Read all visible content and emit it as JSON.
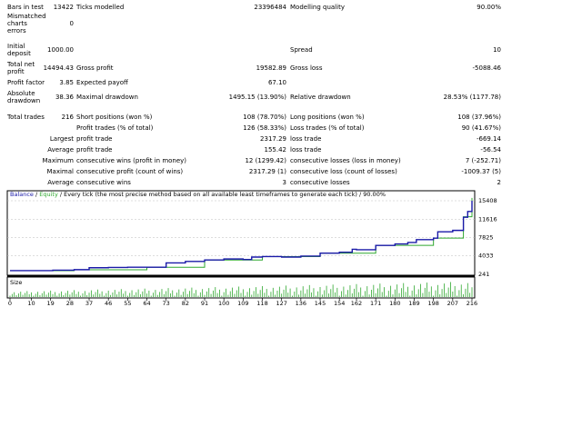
{
  "report": {
    "bars_in_test": {
      "label": "Bars in test",
      "value": "13422"
    },
    "ticks_modelled": {
      "label": "Ticks modelled",
      "value": "23396484"
    },
    "modelling_quality": {
      "label": "Modelling quality",
      "value": "90.00%"
    },
    "mismatched": {
      "label_l1": "Mismatched",
      "label_l2": "charts",
      "label_l3": "errors",
      "value": "0"
    },
    "initial_deposit": {
      "label_l1": "Initial",
      "label_l2": "deposit",
      "value": "1000.00"
    },
    "spread": {
      "label": "Spread",
      "value": "10"
    },
    "total_net_profit": {
      "label_l1": "Total net",
      "label_l2": "profit",
      "value": "14494.43"
    },
    "gross_profit": {
      "label": "Gross profit",
      "value": "19582.89"
    },
    "gross_loss": {
      "label": "Gross loss",
      "value": "-5088.46"
    },
    "profit_factor": {
      "label": "Profit factor",
      "value": "3.85"
    },
    "expected_payoff": {
      "label": "Expected payoff",
      "value": "67.10"
    },
    "absolute_drawdown": {
      "label_l1": "Absolute",
      "label_l2": "drawdown",
      "value": "38.36"
    },
    "maximal_drawdown": {
      "label": "Maximal drawdown",
      "value": "1495.15 (13.90%)"
    },
    "relative_drawdown": {
      "label": "Relative drawdown",
      "value": "28.53% (1177.78)"
    },
    "total_trades": {
      "label": "Total trades",
      "value": "216"
    },
    "short_positions": {
      "label": "Short positions (won %)",
      "value": "108 (78.70%)"
    },
    "long_positions": {
      "label": "Long positions (won %)",
      "value": "108 (37.96%)"
    },
    "profit_trades": {
      "label": "Profit trades (% of total)",
      "value": "126 (58.33%)"
    },
    "loss_trades": {
      "label": "Loss trades (% of total)",
      "value": "90 (41.67%)"
    },
    "largest": {
      "label": "Largest",
      "profit_label": "profit trade",
      "profit_value": "2317.29",
      "loss_label": "loss trade",
      "loss_value": "-669.14"
    },
    "average": {
      "label": "Average",
      "profit_label": "profit trade",
      "profit_value": "155.42",
      "loss_label": "loss trade",
      "loss_value": "-56.54"
    },
    "maximum": {
      "label": "Maximum",
      "wins_label": "consecutive wins (profit in money)",
      "wins_value": "12 (1299.42)",
      "losses_label": "consecutive losses (loss in money)",
      "losses_value": "7 (-252.71)"
    },
    "maximal": {
      "label": "Maximal",
      "wins_label": "consecutive profit (count of wins)",
      "wins_value": "2317.29 (1)",
      "losses_label": "consecutive loss (count of losses)",
      "losses_value": "-1009.37 (5)"
    },
    "average_consec": {
      "label": "Average",
      "wins_label": "consecutive wins",
      "wins_value": "3",
      "losses_label": "consecutive losses",
      "losses_value": "2"
    }
  },
  "colors": {
    "balance": "#1a1aa8",
    "equity": "#2fa82f",
    "volume": "#2fa82f",
    "grid": "#bcbcbc",
    "frame": "#000000",
    "title_text": "#1a1aa8"
  },
  "chart_data": {
    "type": "line",
    "legend": {
      "balance": "Balance",
      "sep1": " / ",
      "equity": "Equity",
      "sep2": " / ",
      "model_text": "Every tick (the most precise method based on all available least timeframes to generate each tick)",
      "sep3": " / ",
      "quality": "90.00%"
    },
    "x_ticks": [
      0,
      10,
      19,
      28,
      37,
      46,
      55,
      64,
      73,
      82,
      91,
      100,
      109,
      118,
      127,
      136,
      145,
      154,
      162,
      171,
      180,
      189,
      198,
      207,
      216
    ],
    "y_ticks": [
      241,
      4033,
      7825,
      11616,
      15408
    ],
    "ylim": [
      241,
      15408
    ],
    "xlim": [
      0,
      216
    ],
    "sub_label": "Size",
    "series": [
      {
        "name": "Balance",
        "x": [
          0,
          10,
          20,
          30,
          37,
          46,
          55,
          64,
          73,
          82,
          91,
          100,
          109,
          113,
          118,
          127,
          136,
          145,
          154,
          160,
          162,
          171,
          180,
          186,
          190,
          198,
          200,
          207,
          212,
          214,
          216
        ],
        "values": [
          1000,
          1000,
          1100,
          1200,
          1600,
          1650,
          1700,
          1700,
          2600,
          2900,
          3200,
          3400,
          3300,
          3800,
          3900,
          3800,
          4000,
          4600,
          4800,
          5400,
          5300,
          6200,
          6500,
          6800,
          7400,
          7700,
          9000,
          9300,
          12000,
          13200,
          15400
        ]
      },
      {
        "name": "Equity",
        "x": [
          0,
          30,
          64,
          91,
          118,
          145,
          171,
          198,
          212,
          216
        ],
        "values": [
          1000,
          1180,
          1700,
          3200,
          3900,
          4600,
          6200,
          7700,
          12100,
          16000
        ]
      }
    ]
  }
}
